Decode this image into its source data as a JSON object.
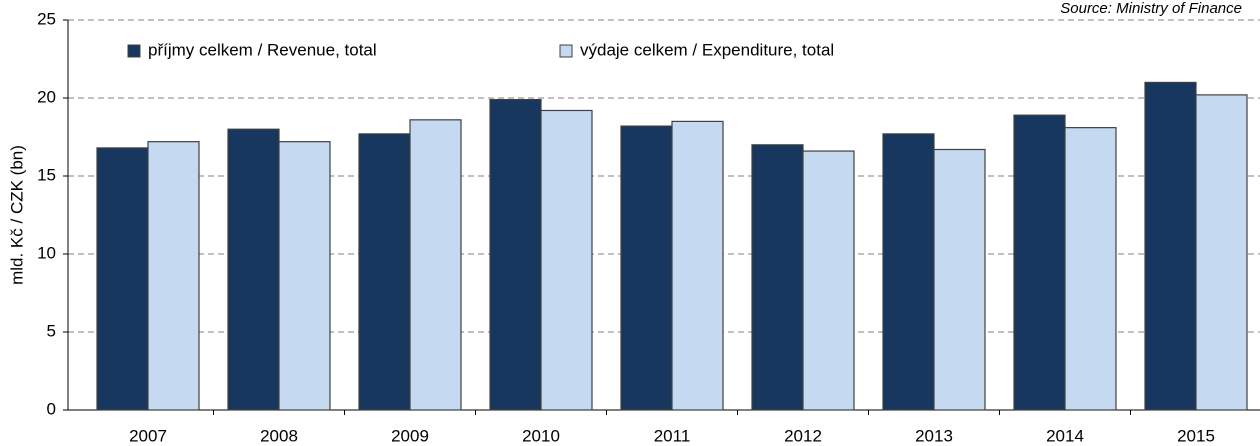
{
  "chart_data": {
    "type": "bar",
    "y_label": "mld. Kč / CZK (bn)",
    "source": "Source: Ministry of Finance",
    "categories": [
      "2007",
      "2008",
      "2009",
      "2010",
      "2011",
      "2012",
      "2013",
      "2014",
      "2015"
    ],
    "series": [
      {
        "name": "příjmy celkem / Revenue, total",
        "color": "#17375e",
        "values": [
          16.8,
          18.0,
          17.7,
          19.9,
          18.2,
          17.0,
          17.7,
          18.9,
          21.0
        ]
      },
      {
        "name": "výdaje celkem / Expenditure, total",
        "color": "#c5d9f1",
        "values": [
          17.2,
          17.2,
          18.6,
          19.2,
          18.5,
          16.6,
          16.7,
          18.1,
          20.2
        ]
      }
    ],
    "ylim": [
      0,
      25
    ],
    "yticks": [
      0,
      5,
      10,
      15,
      20,
      25
    ],
    "grid": true,
    "legend": "top-left"
  }
}
